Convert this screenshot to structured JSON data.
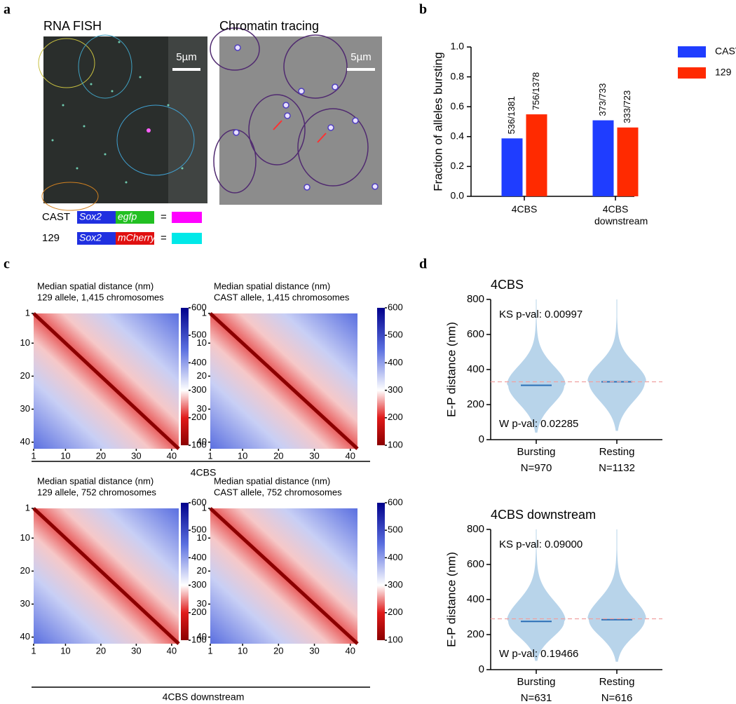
{
  "panel_labels": [
    "a",
    "b",
    "c",
    "d"
  ],
  "panel_a": {
    "images": [
      {
        "title": "RNA FISH",
        "scale_bar": "5µm"
      },
      {
        "title": "Chromatin tracing",
        "scale_bar": "5µm"
      }
    ],
    "constructs": [
      {
        "strain": "CAST",
        "promoter": "Sox2",
        "reporter": "egfp",
        "reporter_color": "#22c022",
        "equals": "=",
        "color": "#ff00ff"
      },
      {
        "strain": "129",
        "promoter": "Sox2",
        "reporter": "mCherry",
        "reporter_color": "#e01010",
        "equals": "=",
        "color": "#00e8e8"
      }
    ]
  },
  "panel_c": {
    "group_labels": [
      "4CBS",
      "4CBS downstream"
    ]
  },
  "chart_data": [
    {
      "type": "bar",
      "ylabel": "Fraction of alleles bursting",
      "categories": [
        "4CBS",
        "4CBS downstream"
      ],
      "series": [
        {
          "name": "CAST",
          "color": "#1f3dff",
          "values": [
            0.388,
            0.509
          ],
          "value_labels": [
            "536/1381",
            "373/733"
          ]
        },
        {
          "name": "129",
          "color": "#ff2a00",
          "values": [
            0.549,
            0.461
          ],
          "value_labels": [
            "756/1378",
            "333/723"
          ]
        }
      ],
      "ylim": [
        0,
        1
      ],
      "yticks": [
        {
          "value": 0,
          "label": "0.0"
        },
        0.2,
        0.4,
        0.6,
        0.8,
        {
          "value": 1,
          "label": "1.0"
        }
      ],
      "legend": "right"
    },
    {
      "type": "heatmap",
      "title": "Median spatial distance (nm)",
      "subtitle": "129 allele, 1,415 chromosomes",
      "xlim": [
        1,
        42
      ],
      "ylim": [
        1,
        42
      ],
      "xticks": [
        1,
        10,
        20,
        30,
        40
      ],
      "yticks": [
        1,
        10,
        20,
        30,
        40
      ],
      "clim": [
        100,
        600
      ],
      "cticks": [
        100,
        200,
        300,
        400,
        500,
        600
      ]
    },
    {
      "type": "heatmap",
      "title": "Median spatial distance (nm)",
      "subtitle": "CAST allele, 1,415 chromosomes",
      "xlim": [
        1,
        42
      ],
      "ylim": [
        1,
        42
      ],
      "xticks": [
        1,
        10,
        20,
        30,
        40
      ],
      "yticks": [
        1,
        10,
        20,
        30,
        40
      ],
      "clim": [
        100,
        600
      ],
      "cticks": [
        100,
        200,
        300,
        400,
        500,
        600
      ]
    },
    {
      "type": "heatmap",
      "title": "Median spatial distance (nm)",
      "subtitle": "129 allele, 752 chromosomes",
      "xlim": [
        1,
        42
      ],
      "ylim": [
        1,
        42
      ],
      "xticks": [
        1,
        10,
        20,
        30,
        40
      ],
      "yticks": [
        1,
        10,
        20,
        30,
        40
      ],
      "clim": [
        100,
        600
      ],
      "cticks": [
        100,
        200,
        300,
        400,
        500,
        600
      ]
    },
    {
      "type": "heatmap",
      "title": "Median spatial distance (nm)",
      "subtitle": "CAST allele, 752 chromosomes",
      "xlim": [
        1,
        42
      ],
      "ylim": [
        1,
        42
      ],
      "xticks": [
        1,
        10,
        20,
        30,
        40
      ],
      "yticks": [
        1,
        10,
        20,
        30,
        40
      ],
      "clim": [
        100,
        600
      ],
      "cticks": [
        100,
        200,
        300,
        400,
        500,
        600
      ]
    },
    {
      "type": "violin",
      "title": "4CBS",
      "ylabel": "E-P distance (nm)",
      "categories": [
        "Bursting",
        "Resting"
      ],
      "n_labels": [
        "N=970",
        "N=1132"
      ],
      "medians": [
        310,
        330
      ],
      "extents": [
        [
          40,
          800
        ],
        [
          50,
          800
        ]
      ],
      "reference": 330,
      "color": "#b8d4ea",
      "median_color": "#2b6fb6",
      "annotations": [
        "KS p-val: 0.00997",
        "W p-val: 0.02285"
      ],
      "ylim": [
        0,
        800
      ],
      "yticks": [
        0,
        200,
        400,
        600,
        800
      ]
    },
    {
      "type": "violin",
      "title": "4CBS downstream",
      "ylabel": "E-P distance (nm)",
      "categories": [
        "Bursting",
        "Resting"
      ],
      "n_labels": [
        "N=631",
        "N=616"
      ],
      "medians": [
        275,
        285
      ],
      "extents": [
        [
          50,
          800
        ],
        [
          45,
          800
        ]
      ],
      "reference": 290,
      "color": "#b8d4ea",
      "median_color": "#2b6fb6",
      "annotations": [
        "KS p-val: 0.09000",
        "W p-val: 0.19466"
      ],
      "ylim": [
        0,
        800
      ],
      "yticks": [
        0,
        200,
        400,
        600,
        800
      ]
    }
  ]
}
